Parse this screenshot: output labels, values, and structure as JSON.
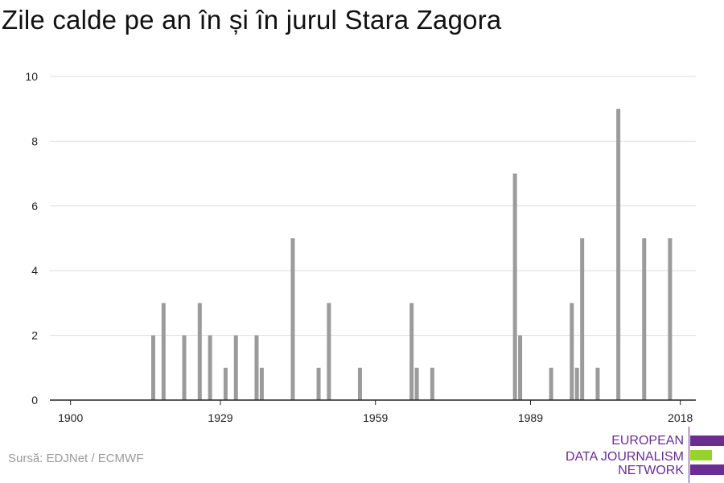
{
  "title": "Zile calde pe an în și în jurul Stara Zagora",
  "source": "Sursă: EDJNet / ECMWF",
  "logo": {
    "lines": [
      "EUROPEAN",
      "DATA JOURNALISM",
      "NETWORK"
    ],
    "colors": [
      "#6a2d91",
      "#97d42b",
      "#6a2d91"
    ]
  },
  "colors": {
    "bar": "#9b9b9b",
    "grid": "#dddddd",
    "axis": "#222222"
  },
  "chart_data": {
    "type": "bar",
    "title": "Zile calde pe an în și în jurul Stara Zagora",
    "xlabel": "",
    "ylabel": "",
    "xlim": [
      1896,
      2021
    ],
    "ylim": [
      0,
      10
    ],
    "x_ticks": [
      1900,
      1929,
      1959,
      1989,
      2018
    ],
    "y_ticks": [
      0,
      2,
      4,
      6,
      8,
      10
    ],
    "grid": true,
    "x": [
      1916,
      1918,
      1922,
      1925,
      1927,
      1930,
      1932,
      1936,
      1937,
      1943,
      1948,
      1950,
      1956,
      1966,
      1967,
      1970,
      1986,
      1987,
      1993,
      1997,
      1998,
      1999,
      2002,
      2006,
      2011,
      2016
    ],
    "values": [
      2,
      3,
      2,
      3,
      2,
      1,
      2,
      2,
      1,
      5,
      1,
      3,
      1,
      3,
      1,
      1,
      7,
      2,
      1,
      3,
      1,
      5,
      1,
      9,
      5,
      5
    ]
  }
}
